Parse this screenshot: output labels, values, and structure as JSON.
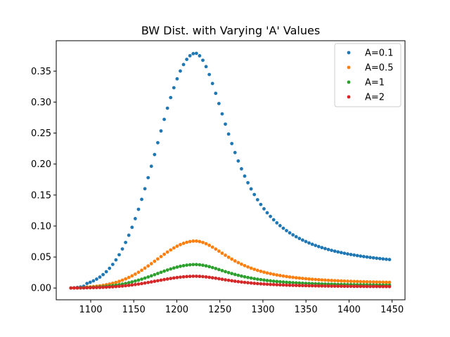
{
  "chart_data": {
    "type": "scatter",
    "title": "BW Dist. with Varying 'A' Values",
    "xlabel": "",
    "ylabel": "",
    "xlim": [
      1060,
      1465
    ],
    "ylim": [
      -0.019,
      0.399
    ],
    "x_ticks": [
      1100,
      1150,
      1200,
      1250,
      1300,
      1350,
      1400,
      1450
    ],
    "y_ticks": [
      0.0,
      0.05,
      0.1,
      0.15,
      0.2,
      0.25,
      0.3,
      0.35
    ],
    "x_tick_labels": [
      "1100",
      "1150",
      "1200",
      "1250",
      "1300",
      "1350",
      "1400",
      "1450"
    ],
    "y_tick_labels": [
      "0.00",
      "0.05",
      "0.10",
      "0.15",
      "0.20",
      "0.25",
      "0.30",
      "0.35"
    ],
    "x_range": {
      "start": 1077,
      "end": 1447,
      "points": 100
    },
    "legend_position": "top-right",
    "grid": false,
    "peak_x": 1222,
    "series": [
      {
        "name": "A=0.1",
        "color": "#1f77b4",
        "peak": 0.379,
        "tail_left": 0.0,
        "tail_right": 0.036
      },
      {
        "name": "A=0.5",
        "color": "#ff7f0e",
        "peak": 0.0758,
        "tail_left": 0.0,
        "tail_right": 0.0072
      },
      {
        "name": "A=1",
        "color": "#2ca02c",
        "peak": 0.0379,
        "tail_left": 0.0,
        "tail_right": 0.0036
      },
      {
        "name": "A=2",
        "color": "#d62728",
        "peak": 0.019,
        "tail_left": 0.0,
        "tail_right": 0.0018
      }
    ]
  }
}
